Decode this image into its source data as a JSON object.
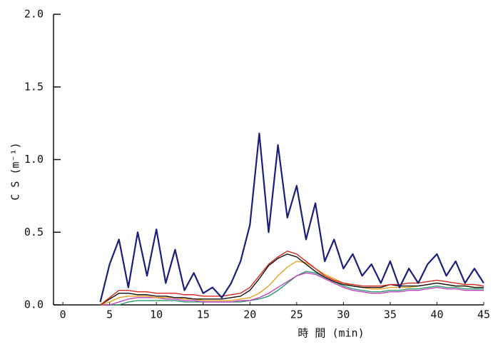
{
  "chart_data": {
    "type": "line",
    "x_label": "時 間 (min)",
    "y_label": "C S (m⁻¹)",
    "x": [
      4,
      5,
      6,
      7,
      8,
      9,
      10,
      11,
      12,
      13,
      14,
      15,
      16,
      17,
      18,
      19,
      20,
      21,
      22,
      23,
      24,
      25,
      26,
      27,
      28,
      29,
      30,
      31,
      32,
      33,
      34,
      35,
      36,
      37,
      38,
      39,
      40,
      41,
      42,
      43,
      44,
      45
    ],
    "series": [
      {
        "color": "#1a1f7a",
        "values": [
          0.02,
          0.28,
          0.45,
          0.12,
          0.5,
          0.2,
          0.52,
          0.15,
          0.38,
          0.1,
          0.22,
          0.08,
          0.12,
          0.05,
          0.15,
          0.3,
          0.55,
          1.18,
          0.5,
          1.1,
          0.6,
          0.82,
          0.45,
          0.7,
          0.3,
          0.45,
          0.25,
          0.35,
          0.2,
          0.28,
          0.15,
          0.3,
          0.12,
          0.25,
          0.15,
          0.28,
          0.35,
          0.2,
          0.3,
          0.15,
          0.25,
          0.15
        ]
      },
      {
        "color": "#d42a1e",
        "values": [
          0,
          0.05,
          0.1,
          0.1,
          0.09,
          0.09,
          0.08,
          0.08,
          0.08,
          0.07,
          0.07,
          0.06,
          0.06,
          0.06,
          0.07,
          0.08,
          0.12,
          0.2,
          0.28,
          0.33,
          0.37,
          0.35,
          0.3,
          0.25,
          0.2,
          0.17,
          0.15,
          0.14,
          0.13,
          0.13,
          0.13,
          0.14,
          0.14,
          0.15,
          0.15,
          0.16,
          0.17,
          0.16,
          0.15,
          0.14,
          0.14,
          0.13
        ]
      },
      {
        "color": "#111111",
        "values": [
          0,
          0.04,
          0.08,
          0.08,
          0.07,
          0.07,
          0.06,
          0.06,
          0.05,
          0.05,
          0.04,
          0.04,
          0.04,
          0.04,
          0.05,
          0.06,
          0.1,
          0.18,
          0.27,
          0.32,
          0.35,
          0.33,
          0.28,
          0.23,
          0.19,
          0.16,
          0.14,
          0.13,
          0.12,
          0.12,
          0.12,
          0.14,
          0.13,
          0.13,
          0.13,
          0.14,
          0.15,
          0.14,
          0.13,
          0.13,
          0.12,
          0.12
        ]
      },
      {
        "color": "#e8a020",
        "values": [
          0,
          0.02,
          0.05,
          0.06,
          0.06,
          0.06,
          0.05,
          0.05,
          0.05,
          0.04,
          0.04,
          0.03,
          0.03,
          0.03,
          0.03,
          0.04,
          0.05,
          0.08,
          0.13,
          0.2,
          0.26,
          0.3,
          0.29,
          0.25,
          0.21,
          0.18,
          0.15,
          0.13,
          0.12,
          0.11,
          0.11,
          0.12,
          0.12,
          0.12,
          0.13,
          0.14,
          0.15,
          0.14,
          0.13,
          0.13,
          0.12,
          0.12
        ]
      },
      {
        "color": "#c040c0",
        "values": [
          0,
          0,
          0.02,
          0.04,
          0.05,
          0.05,
          0.05,
          0.04,
          0.04,
          0.03,
          0.03,
          0.02,
          0.02,
          0.02,
          0.02,
          0.03,
          0.03,
          0.05,
          0.08,
          0.12,
          0.16,
          0.2,
          0.22,
          0.21,
          0.18,
          0.15,
          0.12,
          0.1,
          0.09,
          0.08,
          0.08,
          0.09,
          0.09,
          0.1,
          0.1,
          0.11,
          0.12,
          0.11,
          0.11,
          0.1,
          0.1,
          0.1
        ]
      },
      {
        "color": "#2a9a6a",
        "values": [
          0,
          0,
          0,
          0.02,
          0.03,
          0.03,
          0.03,
          0.03,
          0.03,
          0.02,
          0.02,
          0.02,
          0.02,
          0.02,
          0.02,
          0.02,
          0.03,
          0.04,
          0.06,
          0.1,
          0.15,
          0.2,
          0.23,
          0.22,
          0.19,
          0.16,
          0.13,
          0.11,
          0.1,
          0.09,
          0.09,
          0.1,
          0.1,
          0.11,
          0.11,
          0.12,
          0.13,
          0.12,
          0.12,
          0.11,
          0.11,
          0.11
        ]
      }
    ],
    "xlim": [
      -1,
      45
    ],
    "ylim": [
      0,
      2
    ],
    "xticks": [
      0,
      5,
      10,
      15,
      20,
      25,
      30,
      35,
      40,
      45
    ],
    "yticks": [
      {
        "value": 0,
        "label": "0.0"
      },
      {
        "value": 0.5,
        "label": "0.5"
      },
      {
        "value": 1,
        "label": "1.0"
      },
      {
        "value": 1.5,
        "label": "1.5"
      },
      {
        "value": 2,
        "label": "2.0"
      }
    ]
  }
}
